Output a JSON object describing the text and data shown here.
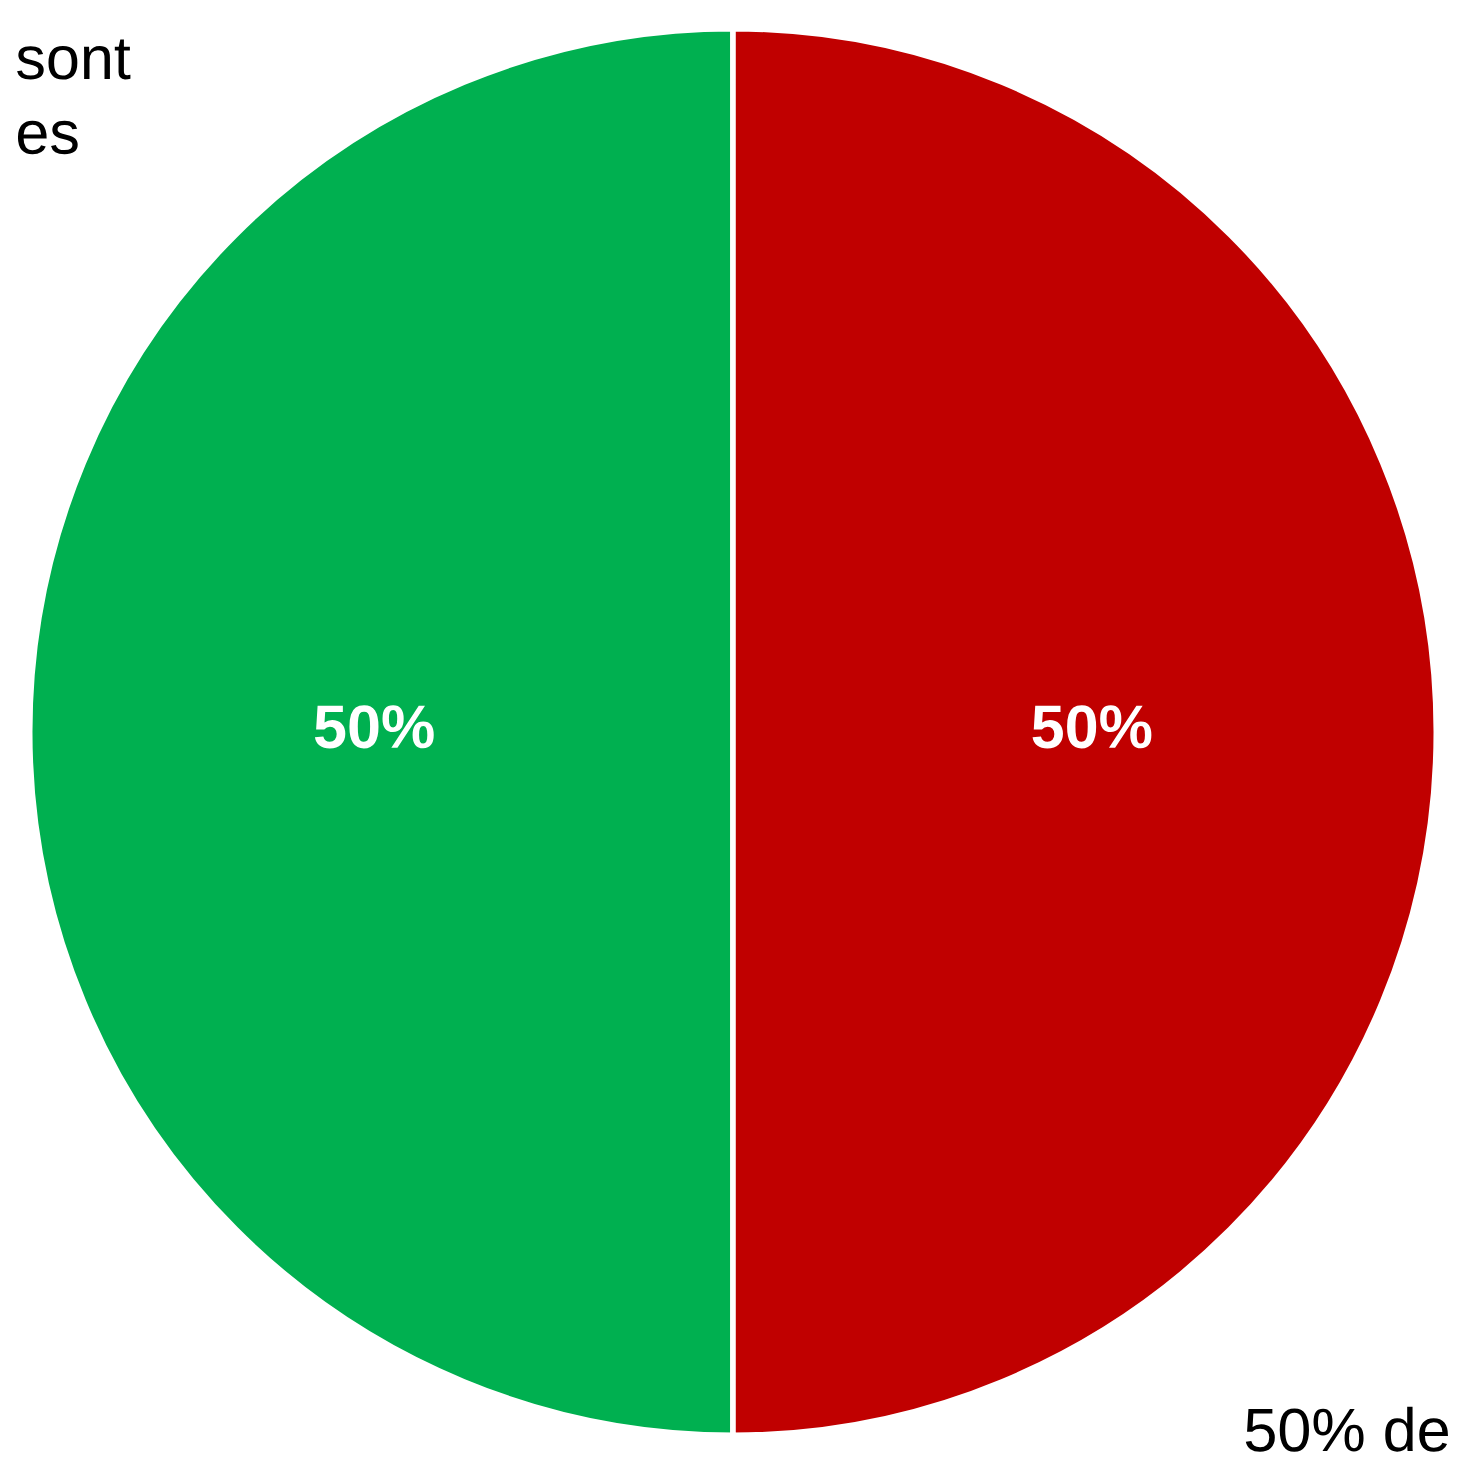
{
  "chart_data": {
    "type": "pie",
    "categories": [
      "sont\nes",
      "50% de"
    ],
    "values": [
      50,
      50
    ],
    "colors": [
      "#00b050",
      "#c00000"
    ],
    "value_labels": [
      "50%",
      "50%"
    ],
    "legend": false
  }
}
